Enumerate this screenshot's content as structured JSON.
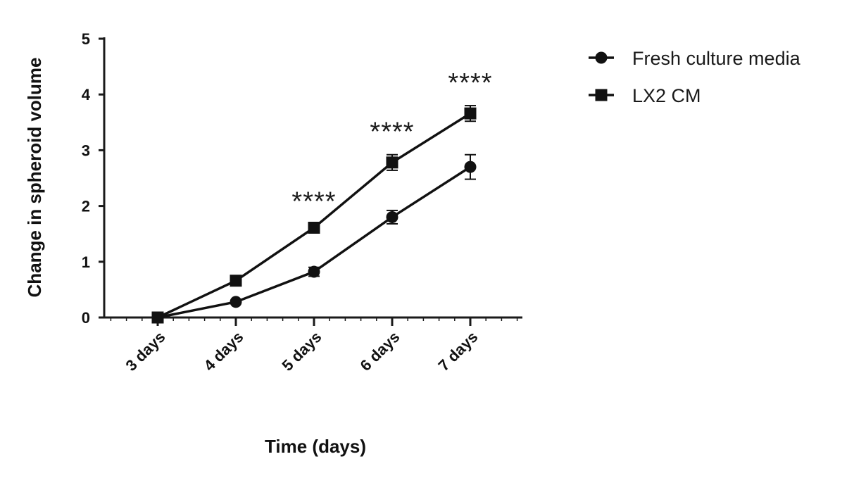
{
  "chart_data": {
    "type": "line",
    "title": "",
    "xlabel": "Time (days)",
    "ylabel": "Change in spheroid volume",
    "categories": [
      "3 days",
      "4 days",
      "5 days",
      "6 days",
      "7 days"
    ],
    "ylim": [
      0,
      5
    ],
    "yticks": [
      "0",
      "1",
      "2",
      "3",
      "4",
      "5"
    ],
    "grid": false,
    "legend_position": "top-right",
    "series": [
      {
        "name": "Fresh culture media",
        "marker": "circle",
        "values": [
          0,
          0.28,
          0.82,
          1.8,
          2.7
        ],
        "error": [
          0.02,
          0.03,
          0.08,
          0.12,
          0.22
        ]
      },
      {
        "name": "LX2 CM",
        "marker": "square",
        "values": [
          0,
          0.66,
          1.61,
          2.78,
          3.66
        ],
        "error": [
          0.02,
          0.05,
          0.06,
          0.14,
          0.14
        ]
      }
    ],
    "annotations": [
      {
        "category": "5 days",
        "text": "****"
      },
      {
        "category": "6 days",
        "text": "****"
      },
      {
        "category": "7 days",
        "text": "****"
      }
    ],
    "colors": {
      "line": "#111111",
      "text": "#1a1a1a"
    }
  }
}
